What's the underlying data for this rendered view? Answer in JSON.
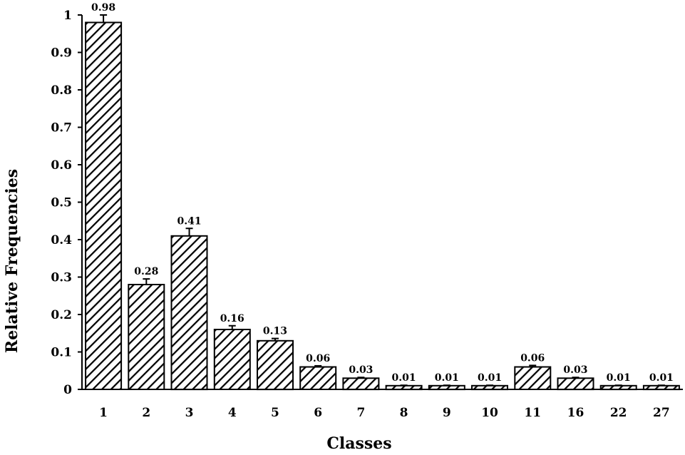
{
  "chart_data": {
    "type": "bar",
    "title": "",
    "xlabel": "Classes",
    "ylabel": "Relative Frequencies",
    "categories": [
      "1",
      "2",
      "3",
      "4",
      "5",
      "6",
      "7",
      "8",
      "9",
      "10",
      "11",
      "16",
      "22",
      "27"
    ],
    "values": [
      0.98,
      0.28,
      0.41,
      0.16,
      0.13,
      0.06,
      0.03,
      0.01,
      0.01,
      0.01,
      0.06,
      0.03,
      0.01,
      0.01
    ],
    "value_labels": [
      "0.98",
      "0.28",
      "0.41",
      "0.16",
      "0.13",
      "0.06",
      "0.03",
      "0.01",
      "0.01",
      "0.01",
      "0.06",
      "0.03",
      "0.01",
      "0.01"
    ],
    "error_upper": [
      1.0,
      0.295,
      0.43,
      0.17,
      0.136,
      0.063,
      0.032,
      0.011,
      0.011,
      0.011,
      0.064,
      0.032,
      0.011,
      0.011
    ],
    "ylim": [
      0,
      1
    ],
    "yticks": [
      "0",
      "0.1",
      "0.2",
      "0.3",
      "0.4",
      "0.5",
      "0.6",
      "0.7",
      "0.8",
      "0.9",
      "1"
    ],
    "grid": false,
    "legend": "none",
    "bar_fill": "hatched",
    "colors": {
      "bar_stroke": "#000000",
      "hatch": "#000000",
      "background": "#ffffff"
    }
  }
}
